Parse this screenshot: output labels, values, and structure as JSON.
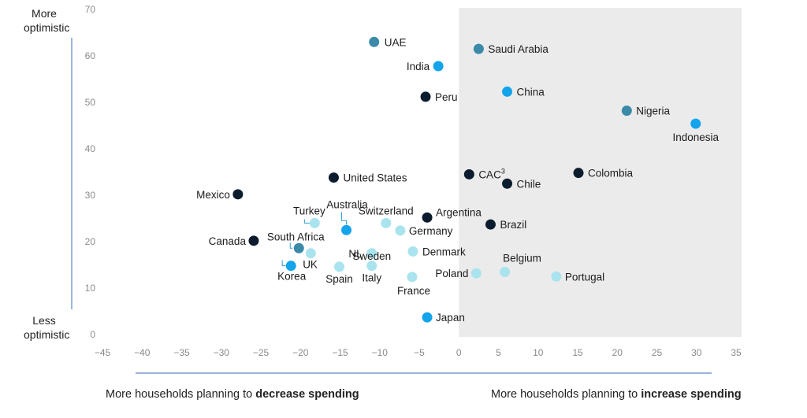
{
  "chart_data": {
    "type": "scatter",
    "xlim": [
      -45,
      35
    ],
    "ylim": [
      0,
      70
    ],
    "xticks": [
      -45,
      -40,
      -35,
      -30,
      -25,
      -20,
      -15,
      -10,
      -5,
      0,
      5,
      10,
      15,
      20,
      25,
      30,
      35
    ],
    "yticks": [
      0,
      10,
      20,
      30,
      40,
      50,
      60,
      70
    ],
    "shaded_region": {
      "from_x": 0,
      "to_x": 35
    },
    "y_top_label": [
      "More",
      "optimistic"
    ],
    "y_bottom_label": [
      "Less",
      "optimistic"
    ],
    "x_left_label": {
      "prefix": "More households planning to ",
      "bold": "decrease spending"
    },
    "x_right_label": {
      "prefix": "More households planning to ",
      "bold": "increase spending"
    },
    "colors": {
      "dark": "#0b1c2e",
      "teal": "#3a8aa8",
      "blue": "#13a4ec",
      "light": "#a9e3ee"
    },
    "points": [
      {
        "name": "UAE",
        "x": -10.7,
        "y": 63,
        "color": "teal"
      },
      {
        "name": "Saudi Arabia",
        "x": 2.5,
        "y": 61.5,
        "color": "teal"
      },
      {
        "name": "India",
        "x": -2.6,
        "y": 57.8,
        "color": "blue"
      },
      {
        "name": "China",
        "x": 6.1,
        "y": 52.3,
        "color": "blue"
      },
      {
        "name": "Peru",
        "x": -4.2,
        "y": 51.2,
        "color": "dark"
      },
      {
        "name": "Nigeria",
        "x": 21.2,
        "y": 48.2,
        "color": "teal"
      },
      {
        "name": "Indonesia",
        "x": 29.9,
        "y": 45.4,
        "color": "blue"
      },
      {
        "name": "United States",
        "x": -15.8,
        "y": 33.8,
        "color": "dark"
      },
      {
        "name": "CAC",
        "sup": "3",
        "x": 1.3,
        "y": 34.5,
        "color": "dark"
      },
      {
        "name": "Colombia",
        "x": 15.1,
        "y": 34.8,
        "color": "dark"
      },
      {
        "name": "Chile",
        "x": 6.1,
        "y": 32.5,
        "color": "dark"
      },
      {
        "name": "Mexico",
        "x": -27.9,
        "y": 30.2,
        "color": "dark"
      },
      {
        "name": "Argentina",
        "x": -4,
        "y": 25.2,
        "color": "dark"
      },
      {
        "name": "Brazil",
        "x": 4,
        "y": 23.7,
        "color": "dark"
      },
      {
        "name": "Turkey",
        "x": -18.2,
        "y": 24,
        "color": "light"
      },
      {
        "name": "Australia",
        "x": -14.2,
        "y": 22.5,
        "color": "blue"
      },
      {
        "name": "Switzerland",
        "x": -9.2,
        "y": 24,
        "color": "light"
      },
      {
        "name": "Germany",
        "x": -7.4,
        "y": 22.4,
        "color": "light"
      },
      {
        "name": "Canada",
        "x": -25.9,
        "y": 20.2,
        "color": "dark"
      },
      {
        "name": "South Africa",
        "x": -20.2,
        "y": 18.6,
        "color": "teal"
      },
      {
        "name": "Sweden",
        "x": -18.7,
        "y": 17.5,
        "color": "light"
      },
      {
        "name": "NL",
        "x": -11,
        "y": 17.5,
        "color": "light"
      },
      {
        "name": "Denmark",
        "x": -5.8,
        "y": 17.9,
        "color": "light"
      },
      {
        "name": "UK",
        "x": -21.2,
        "y": 14.8,
        "color": "blue"
      },
      {
        "name": "Korea",
        "x": -21.2,
        "y": 14.8,
        "color": "blue"
      },
      {
        "name": "Spain",
        "x": -15.1,
        "y": 14.6,
        "color": "light"
      },
      {
        "name": "Italy",
        "x": -11,
        "y": 14.8,
        "color": "light"
      },
      {
        "name": "France",
        "x": -5.9,
        "y": 12.4,
        "color": "light"
      },
      {
        "name": "Poland",
        "x": 2.2,
        "y": 13.2,
        "color": "light"
      },
      {
        "name": "Belgium",
        "x": 5.8,
        "y": 13.5,
        "color": "light"
      },
      {
        "name": "Portugal",
        "x": 12.3,
        "y": 12.5,
        "color": "light"
      },
      {
        "name": "Japan",
        "x": -4,
        "y": 3.7,
        "color": "blue"
      }
    ]
  }
}
